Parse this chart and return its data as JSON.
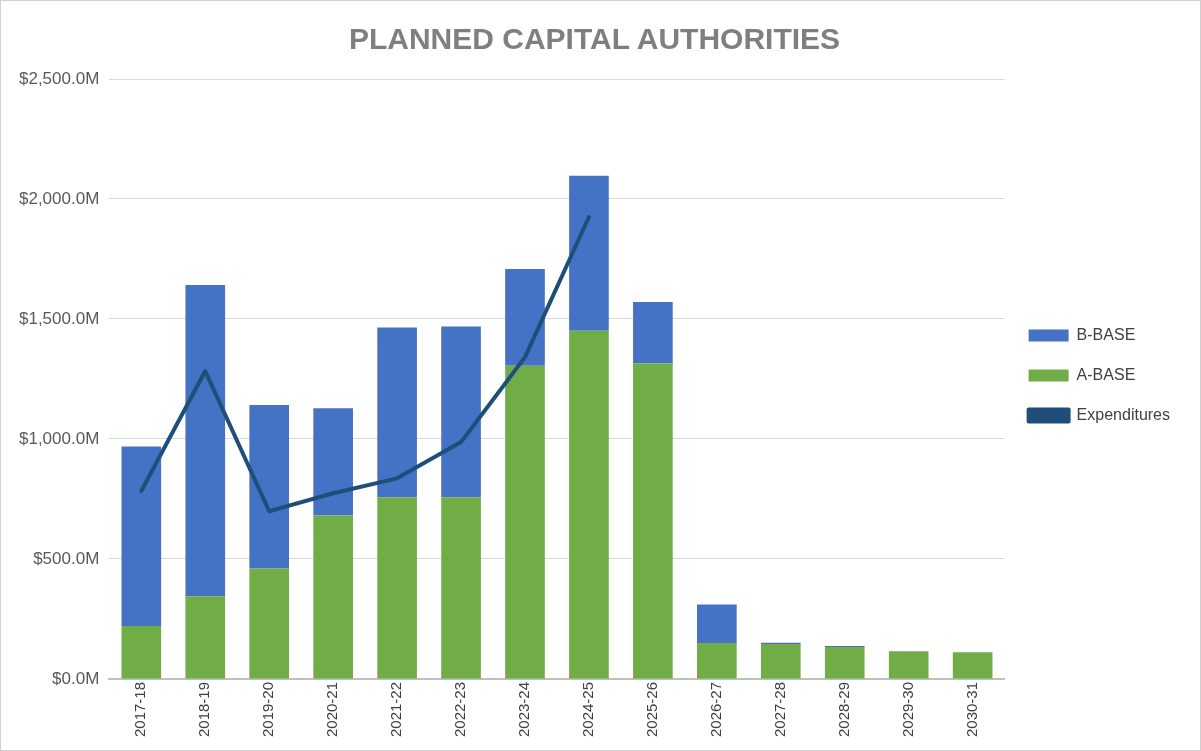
{
  "chart_data": {
    "type": "bar",
    "title": "PLANNED CAPITAL AUTHORITIES",
    "stacked": true,
    "categories": [
      "2017-18",
      "2018-19",
      "2019-20",
      "2020-21",
      "2021-22",
      "2022-23",
      "2023-24",
      "2024-25",
      "2025-26",
      "2026-27",
      "2027-28",
      "2028-29",
      "2029-30",
      "2030-31"
    ],
    "series": [
      {
        "name": "A-BASE",
        "color": "#70ad47",
        "values": [
          221,
          345,
          460,
          681,
          757,
          757,
          1305,
          1451,
          1314,
          150,
          146,
          133,
          115,
          111
        ]
      },
      {
        "name": "B-BASE",
        "color": "#4472c4",
        "values": [
          748,
          1297,
          682,
          447,
          708,
          712,
          403,
          646,
          257,
          160,
          5,
          4,
          0,
          0
        ]
      },
      {
        "name": "Expenditures",
        "type": "line",
        "color": "#1f4e79",
        "values": [
          783,
          1283,
          699,
          774,
          836,
          987,
          1341,
          1925,
          null,
          null,
          null,
          null,
          null,
          null
        ]
      }
    ],
    "ylim": [
      0,
      2500
    ],
    "yticks": [
      {
        "value": 0,
        "label": "$0.0M"
      },
      {
        "value": 500,
        "label": "$500.0M"
      },
      {
        "value": 1000,
        "label": "$1,000.0M"
      },
      {
        "value": 1500,
        "label": "$1,500.0M"
      },
      {
        "value": 2000,
        "label": "$2,000.0M"
      },
      {
        "value": 2500,
        "label": "$2,500.0M"
      }
    ],
    "grid": "y",
    "legend": "right",
    "marker": "none",
    "line_style": "solid"
  }
}
